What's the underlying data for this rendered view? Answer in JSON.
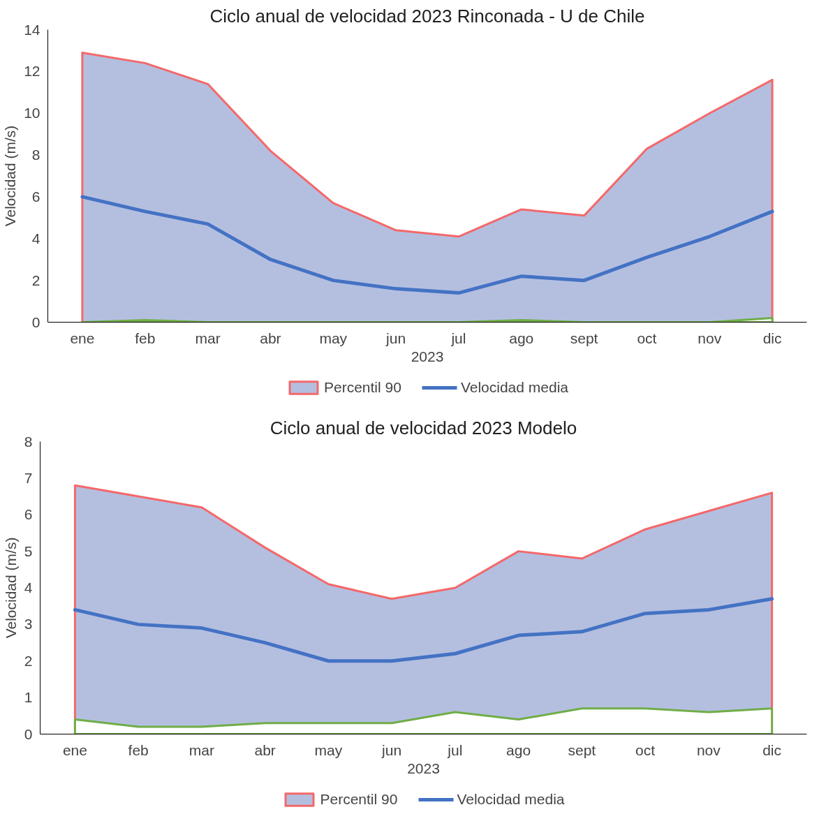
{
  "chart_data": [
    {
      "type": "area",
      "title": "Ciclo anual de velocidad 2023 Rinconada - U de Chile",
      "xlabel": "2023",
      "ylabel": "Velocidad (m/s)",
      "categories": [
        "ene",
        "feb",
        "mar",
        "abr",
        "may",
        "jun",
        "jul",
        "ago",
        "sept",
        "oct",
        "nov",
        "dic"
      ],
      "series": [
        {
          "name": "Percentil 90",
          "color": "#b4bfe0",
          "values": [
            12.9,
            12.4,
            11.4,
            8.2,
            5.7,
            4.4,
            4.1,
            5.4,
            5.1,
            8.3,
            10.0,
            11.6
          ]
        },
        {
          "color": "#ffffff",
          "values": [
            0.0,
            0.1,
            0.0,
            0.0,
            0.0,
            0.0,
            0.0,
            0.1,
            0.0,
            0.0,
            0.0,
            0.2
          ]
        },
        {
          "name": "Velocidad media",
          "type": "line",
          "color": "#4472c4",
          "values": [
            6.0,
            5.3,
            4.7,
            3.0,
            2.0,
            1.6,
            1.4,
            2.2,
            2.0,
            3.1,
            4.1,
            5.3
          ]
        }
      ],
      "ylim": [
        0,
        14
      ],
      "yticks": [
        0,
        2,
        4,
        6,
        8,
        10,
        12,
        14
      ],
      "grid": false,
      "legend": "bottom"
    },
    {
      "type": "area",
      "title": "Ciclo anual de velocidad 2023 Modelo",
      "xlabel": "2023",
      "ylabel": "Velocidad (m/s)",
      "categories": [
        "ene",
        "feb",
        "mar",
        "abr",
        "may",
        "jun",
        "jul",
        "ago",
        "sept",
        "oct",
        "nov",
        "dic"
      ],
      "series": [
        {
          "name": "Percentil 90",
          "color": "#b4bfe0",
          "values": [
            6.8,
            6.5,
            6.2,
            5.1,
            4.1,
            3.7,
            4.0,
            5.0,
            4.8,
            5.6,
            6.1,
            6.6
          ]
        },
        {
          "color": "#ffffff",
          "values": [
            0.4,
            0.2,
            0.2,
            0.3,
            0.3,
            0.3,
            0.6,
            0.4,
            0.7,
            0.7,
            0.6,
            0.7
          ]
        },
        {
          "name": "Velocidad media",
          "type": "line",
          "color": "#4472c4",
          "values": [
            3.4,
            3.0,
            2.9,
            2.5,
            2.0,
            2.0,
            2.2,
            2.7,
            2.8,
            3.3,
            3.4,
            3.7
          ]
        }
      ],
      "ylim": [
        0,
        8
      ],
      "yticks": [
        0,
        1,
        2,
        3,
        4,
        5,
        6,
        7,
        8
      ],
      "grid": false,
      "legend": "bottom"
    }
  ]
}
